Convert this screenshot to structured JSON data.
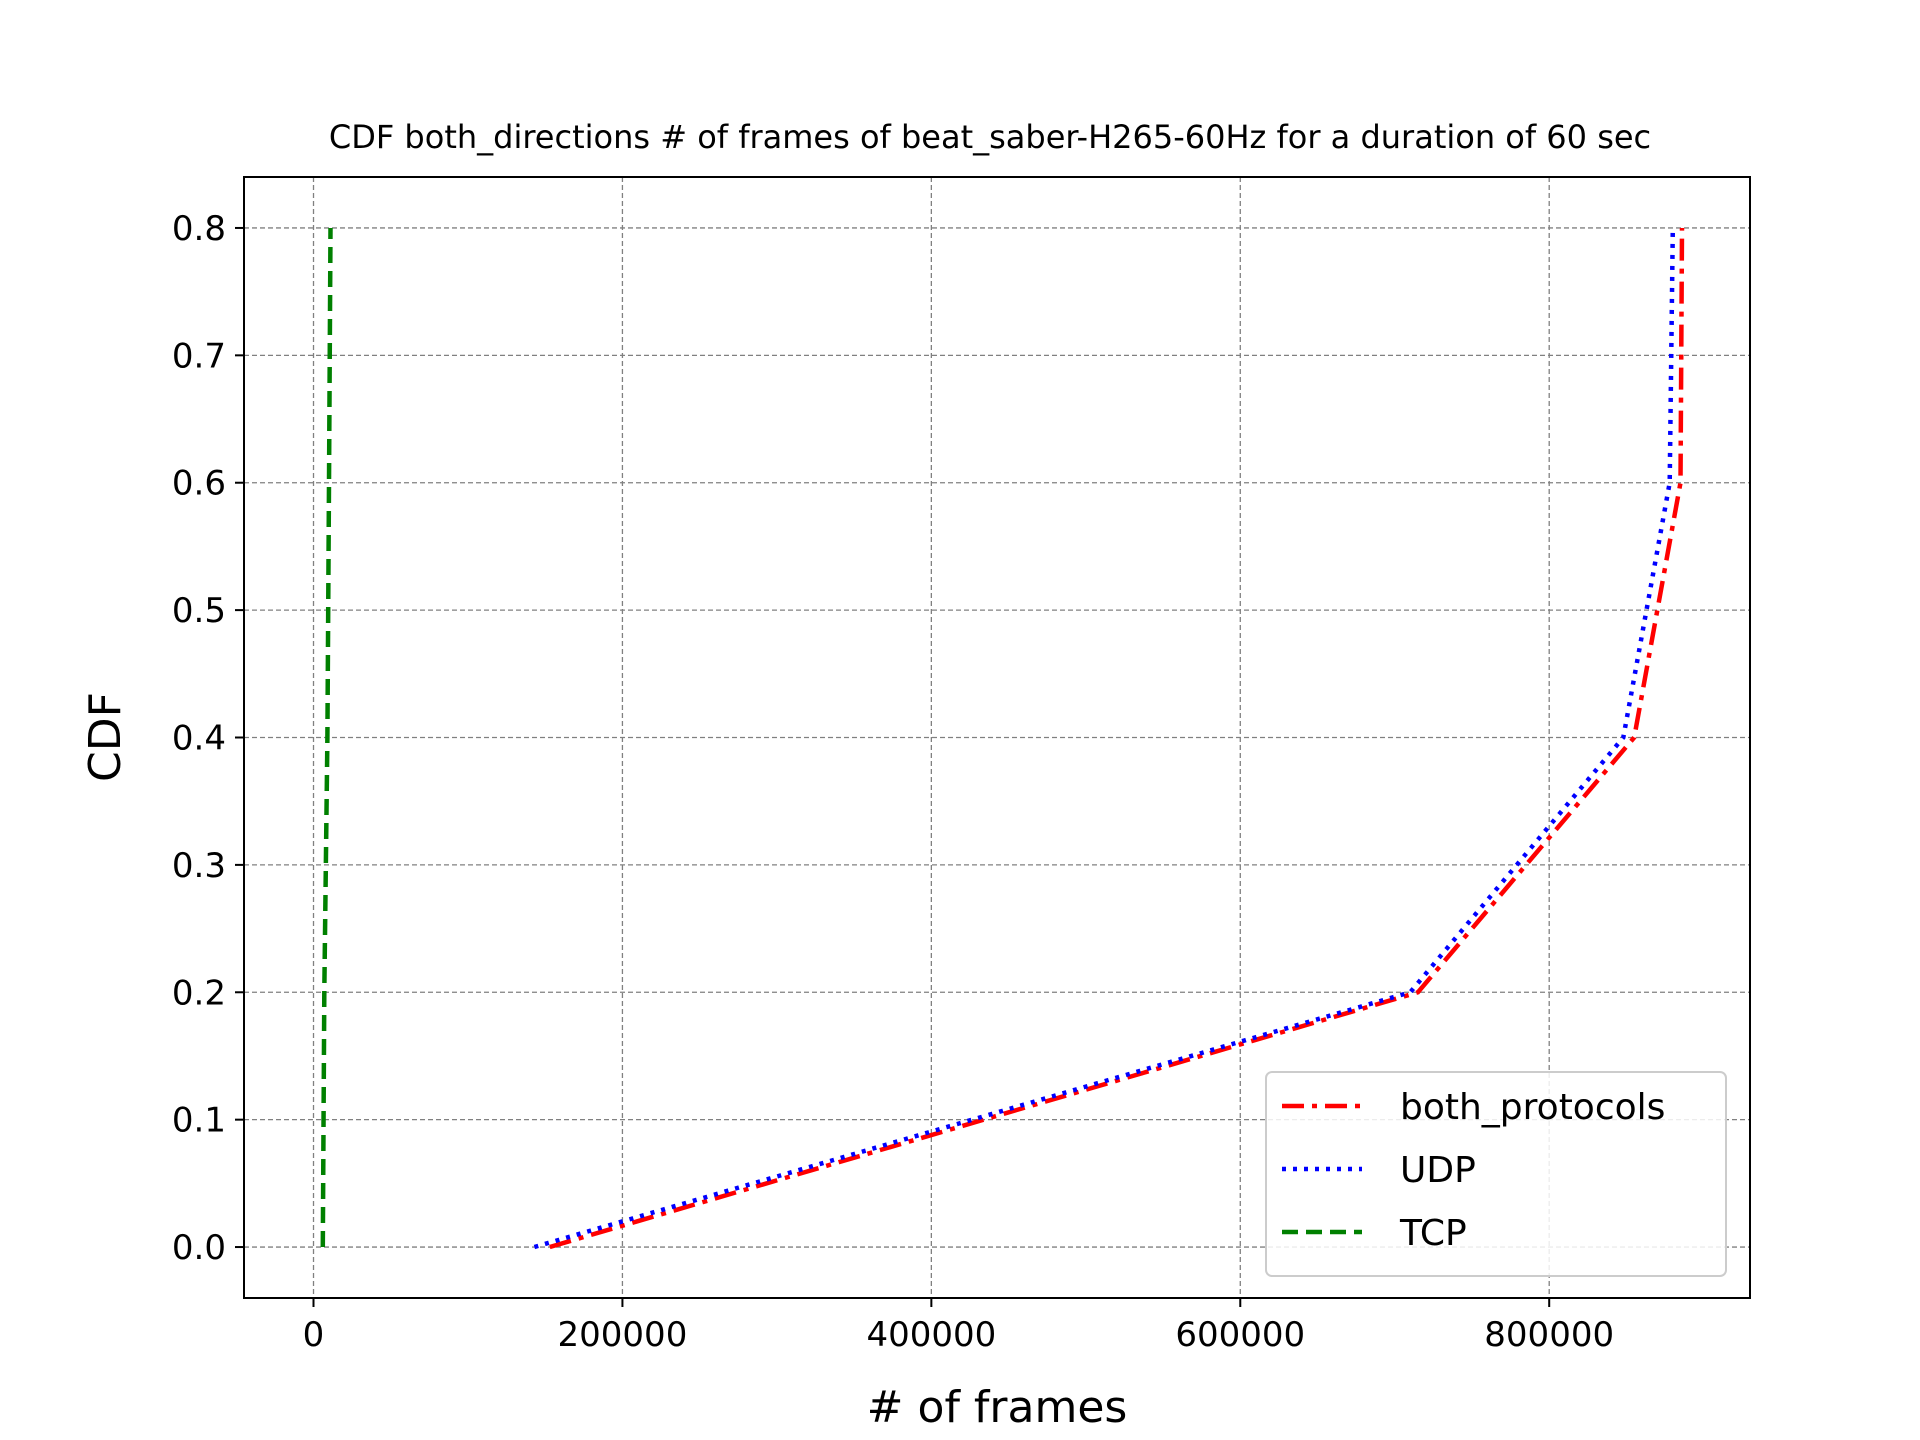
{
  "chart_data": {
    "type": "line",
    "title": "CDF both_directions # of frames of beat_saber-H265-60Hz for a duration of 60 sec",
    "xlabel": "# of frames",
    "ylabel": "CDF",
    "xlim": [
      -45000,
      930000
    ],
    "ylim": [
      -0.04,
      0.84
    ],
    "xticks": [
      0,
      200000,
      400000,
      600000,
      800000
    ],
    "xtick_labels": [
      "0",
      "200000",
      "400000",
      "600000",
      "800000"
    ],
    "yticks": [
      0.0,
      0.1,
      0.2,
      0.3,
      0.4,
      0.5,
      0.6,
      0.7,
      0.8
    ],
    "ytick_labels": [
      "0.0",
      "0.1",
      "0.2",
      "0.3",
      "0.4",
      "0.5",
      "0.6",
      "0.7",
      "0.8"
    ],
    "grid": true,
    "legend_position": "lower-right",
    "series": [
      {
        "name": "both_protocols",
        "color": "#ff0000",
        "style": "dashdot",
        "x": [
          153000,
          715000,
          855000,
          885000,
          886000
        ],
        "y": [
          0.0,
          0.2,
          0.4,
          0.6,
          0.8
        ]
      },
      {
        "name": "UDP",
        "color": "#0000ff",
        "style": "dotted",
        "x": [
          143000,
          710000,
          848000,
          878000,
          880000
        ],
        "y": [
          0.0,
          0.2,
          0.4,
          0.6,
          0.8
        ]
      },
      {
        "name": "TCP",
        "color": "#008000",
        "style": "dashed",
        "x": [
          6000,
          7000,
          9000,
          10000,
          11000
        ],
        "y": [
          0.0,
          0.2,
          0.4,
          0.6,
          0.8
        ]
      }
    ]
  }
}
